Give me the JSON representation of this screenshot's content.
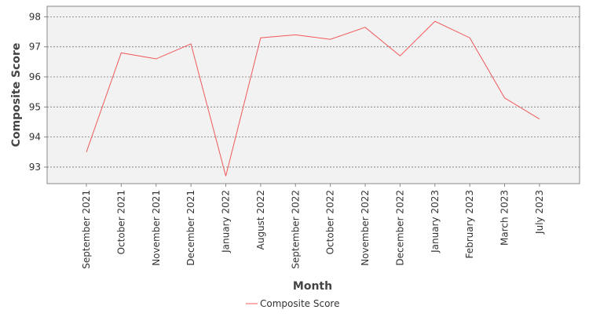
{
  "chart_data": {
    "type": "line",
    "xlabel": "Month",
    "ylabel": "Composite Score",
    "categories": [
      "September 2021",
      "October 2021",
      "November 2021",
      "December 2021",
      "January 2022",
      "August 2022",
      "September 2022",
      "October 2022",
      "November 2022",
      "December 2022",
      "January 2023",
      "February 2023",
      "March 2023",
      "July 2023"
    ],
    "series": [
      {
        "name": "Composite Score",
        "color": "#f0595a",
        "values": [
          93.5,
          96.8,
          96.6,
          97.1,
          92.7,
          97.3,
          97.4,
          97.25,
          97.65,
          96.7,
          97.85,
          97.3,
          95.3,
          94.6
        ]
      }
    ],
    "ylim": [
      92.45,
      98.35
    ],
    "yticks": [
      93,
      94,
      95,
      96,
      97,
      98
    ],
    "grid": true,
    "legend": "bottom-center",
    "plot_background": "#f2f2f2"
  }
}
